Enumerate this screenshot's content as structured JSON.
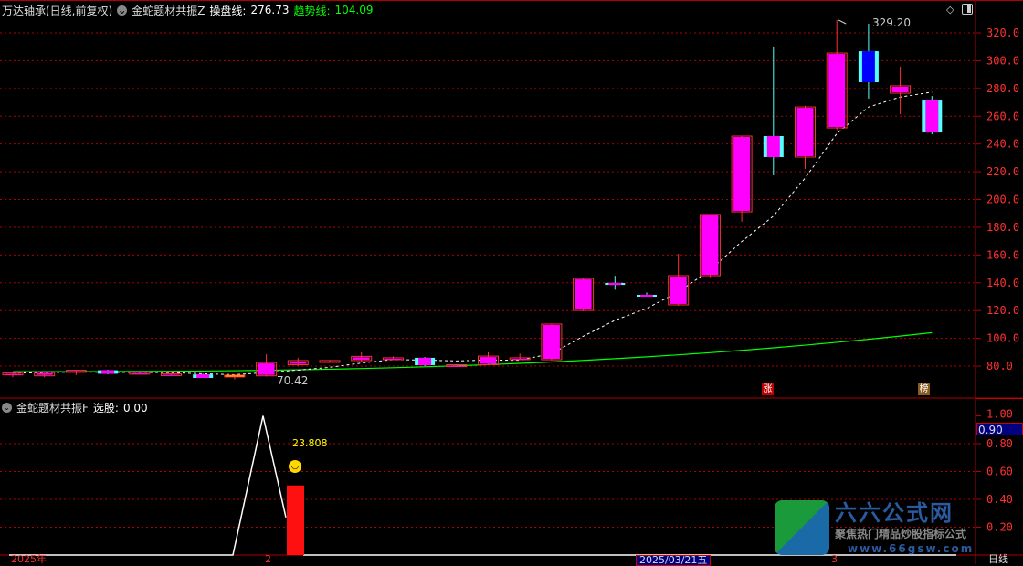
{
  "header": {
    "stock_name": "万达轴承(日线,前复权)",
    "indicator_name": "金蛇题材共振Z",
    "line1_label": "操盘线:",
    "line1_value": "276.73",
    "line2_label": "趋势线:",
    "line2_value": "104.09",
    "line1_color": "#ffffff",
    "line2_color": "#00ff00"
  },
  "main_chart": {
    "y_axis_ticks": [
      "320.0",
      "300.0",
      "280.0",
      "260.0",
      "240.0",
      "220.0",
      "200.0",
      "180.0",
      "160.0",
      "140.0",
      "120.0",
      "100.0",
      "80.0"
    ],
    "y_range": [
      80,
      320
    ],
    "high_label": "329.20",
    "low_label": "70.42",
    "markers": [
      {
        "text": "涨",
        "color": "#c00000"
      },
      {
        "text": "榜",
        "color": "#8a5a20"
      }
    ],
    "candles": [
      {
        "o": 74,
        "h": 76,
        "l": 72,
        "c": 75
      },
      {
        "o": 73,
        "h": 75,
        "l": 72,
        "c": 75.5
      },
      {
        "o": 75.5,
        "h": 77,
        "l": 73.5,
        "c": 77
      },
      {
        "o": 77,
        "h": 77.5,
        "l": 74,
        "c": 74.5,
        "down": true
      },
      {
        "o": 75,
        "h": 76,
        "l": 74,
        "c": 75.5
      },
      {
        "o": 74.5,
        "h": 75,
        "l": 73.5,
        "c": 74
      },
      {
        "o": 74,
        "h": 74.5,
        "l": 71.5,
        "c": 71.5,
        "down": true
      },
      {
        "o": 72.8,
        "h": 74,
        "l": 70.42,
        "c": 73.5,
        "yellow": true
      },
      {
        "o": 73,
        "h": 88.6,
        "l": 72.5,
        "c": 82.6
      },
      {
        "o": 81,
        "h": 86,
        "l": 80,
        "c": 84
      },
      {
        "o": 83,
        "h": 84.5,
        "l": 82.5,
        "c": 84
      },
      {
        "o": 84,
        "h": 90,
        "l": 83,
        "c": 87
      },
      {
        "o": 86,
        "h": 87,
        "l": 84.5,
        "c": 86
      },
      {
        "o": 86,
        "h": 86.5,
        "l": 80,
        "c": 80.7,
        "down": true
      },
      {
        "o": 80.5,
        "h": 81.5,
        "l": 80,
        "c": 81
      },
      {
        "o": 81,
        "h": 90,
        "l": 80.5,
        "c": 87.2
      },
      {
        "o": 85.5,
        "h": 89,
        "l": 85,
        "c": 86
      },
      {
        "o": 84.6,
        "h": 110.3,
        "l": 84,
        "c": 110.3
      },
      {
        "o": 120.1,
        "h": 143.1,
        "l": 119.5,
        "c": 143.1
      },
      {
        "o": 139.9,
        "h": 145,
        "l": 135,
        "c": 138.5,
        "down": true
      },
      {
        "o": 131.3,
        "h": 133,
        "l": 130,
        "c": 130,
        "down": true
      },
      {
        "o": 124.1,
        "h": 160.9,
        "l": 123.5,
        "c": 145.1
      },
      {
        "o": 145.1,
        "h": 189.2,
        "l": 144,
        "c": 189.2
      },
      {
        "o": 191.1,
        "h": 245.7,
        "l": 184,
        "c": 245.7
      },
      {
        "o": 245.7,
        "h": 309.5,
        "l": 217.4,
        "c": 230.6,
        "down": true
      },
      {
        "o": 230.6,
        "h": 267.5,
        "l": 222,
        "c": 266.7
      },
      {
        "o": 251.6,
        "h": 329.2,
        "l": 250,
        "c": 305.5
      },
      {
        "o": 306.8,
        "h": 326.6,
        "l": 272.7,
        "c": 284.5,
        "blue": true
      },
      {
        "o": 276.6,
        "h": 295.7,
        "l": 261.5,
        "c": 281.9
      },
      {
        "o": 271.3,
        "h": 274.6,
        "l": 247,
        "c": 248.3,
        "down": true
      }
    ],
    "trend_line_start": 76,
    "trend_line_end": 104.09
  },
  "sub_chart": {
    "indicator_name": "金蛇题材共振F",
    "value_label": "选股:",
    "value": "0.00",
    "y_axis_ticks": [
      "1.00",
      "0.80",
      "0.60",
      "0.40",
      "0.20"
    ],
    "cursor_value": "0.90",
    "bar_annotation": "23.808",
    "signal_icon": "smiley-icon"
  },
  "date_axis": {
    "labels": [
      "2025年",
      "2",
      "2025/03/21五",
      "3"
    ],
    "period": "日线"
  },
  "logo": {
    "title": "六六公式网",
    "subtitle": "聚焦热门精品炒股指标公式",
    "url": "www.66gsw.com"
  },
  "colors": {
    "grid": "#b00000",
    "up": "#ff3030",
    "body": "#ff00ff",
    "down": "#54ffff",
    "blue": "#0000ff",
    "trend": "#00ff00"
  }
}
